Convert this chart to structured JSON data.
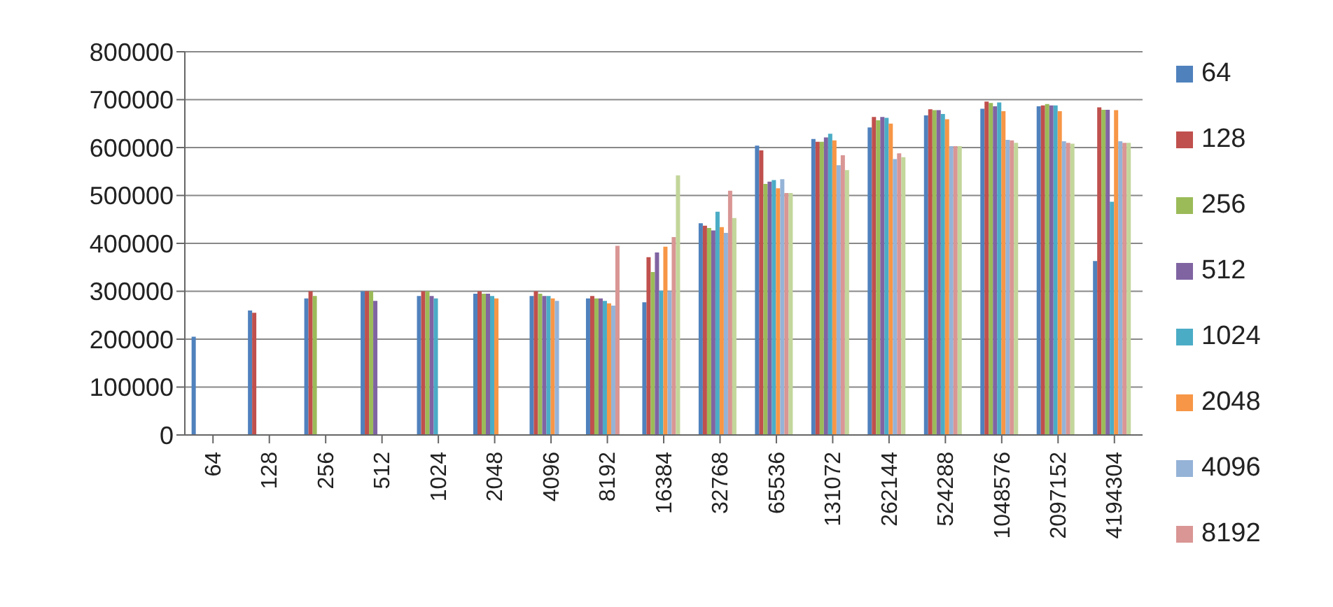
{
  "chart_data": {
    "type": "bar",
    "categories": [
      "64",
      "128",
      "256",
      "512",
      "1024",
      "2048",
      "4096",
      "8192",
      "16384",
      "32768",
      "65536",
      "131072",
      "262144",
      "524288",
      "1048576",
      "2097152",
      "4194304"
    ],
    "series": [
      {
        "name": "64",
        "color": "#4f81bd",
        "values": [
          205000,
          260000,
          285000,
          300000,
          290000,
          295000,
          290000,
          285000,
          277000,
          442000,
          604000,
          618000,
          642000,
          667000,
          681000,
          686000,
          363000
        ]
      },
      {
        "name": "128",
        "color": "#c0504d",
        "values": [
          null,
          255000,
          300000,
          300000,
          300000,
          300000,
          300000,
          290000,
          371000,
          437000,
          594000,
          612000,
          664000,
          680000,
          696000,
          688000,
          684000
        ]
      },
      {
        "name": "256",
        "color": "#9bbb59",
        "values": [
          null,
          null,
          290000,
          300000,
          300000,
          295000,
          295000,
          285000,
          340000,
          432000,
          524000,
          612000,
          657000,
          678000,
          693000,
          691000,
          679000
        ]
      },
      {
        "name": "512",
        "color": "#8064a2",
        "values": [
          null,
          null,
          null,
          280000,
          290000,
          295000,
          290000,
          285000,
          381000,
          427000,
          529000,
          621000,
          664000,
          678000,
          686000,
          688000,
          679000
        ]
      },
      {
        "name": "1024",
        "color": "#4bacc6",
        "values": [
          null,
          null,
          null,
          null,
          285000,
          290000,
          290000,
          280000,
          301000,
          466000,
          532000,
          629000,
          662000,
          670000,
          694000,
          688000,
          487000
        ]
      },
      {
        "name": "2048",
        "color": "#f79646",
        "values": [
          null,
          null,
          null,
          null,
          null,
          285000,
          285000,
          275000,
          393000,
          434000,
          515000,
          615000,
          650000,
          659000,
          676000,
          676000,
          678000
        ]
      },
      {
        "name": "4096",
        "color": "#95b3d7",
        "values": [
          null,
          null,
          null,
          null,
          null,
          null,
          280000,
          270000,
          300000,
          422000,
          534000,
          563000,
          576000,
          603000,
          616000,
          613000,
          613000
        ]
      },
      {
        "name": "8192",
        "color": "#d99694",
        "values": [
          null,
          null,
          null,
          null,
          null,
          null,
          null,
          395000,
          413000,
          510000,
          505000,
          584000,
          588000,
          603000,
          615000,
          610000,
          610000
        ]
      },
      {
        "color": "#c3d69b",
        "values": [
          null,
          null,
          null,
          null,
          null,
          null,
          null,
          null,
          542000,
          453000,
          505000,
          553000,
          580000,
          603000,
          610000,
          608000,
          610000
        ]
      }
    ],
    "ylim": [
      0,
      800000
    ],
    "yticks": [
      0,
      100000,
      200000,
      300000,
      400000,
      500000,
      600000,
      700000,
      800000
    ],
    "grid": "y",
    "legend": "right"
  }
}
